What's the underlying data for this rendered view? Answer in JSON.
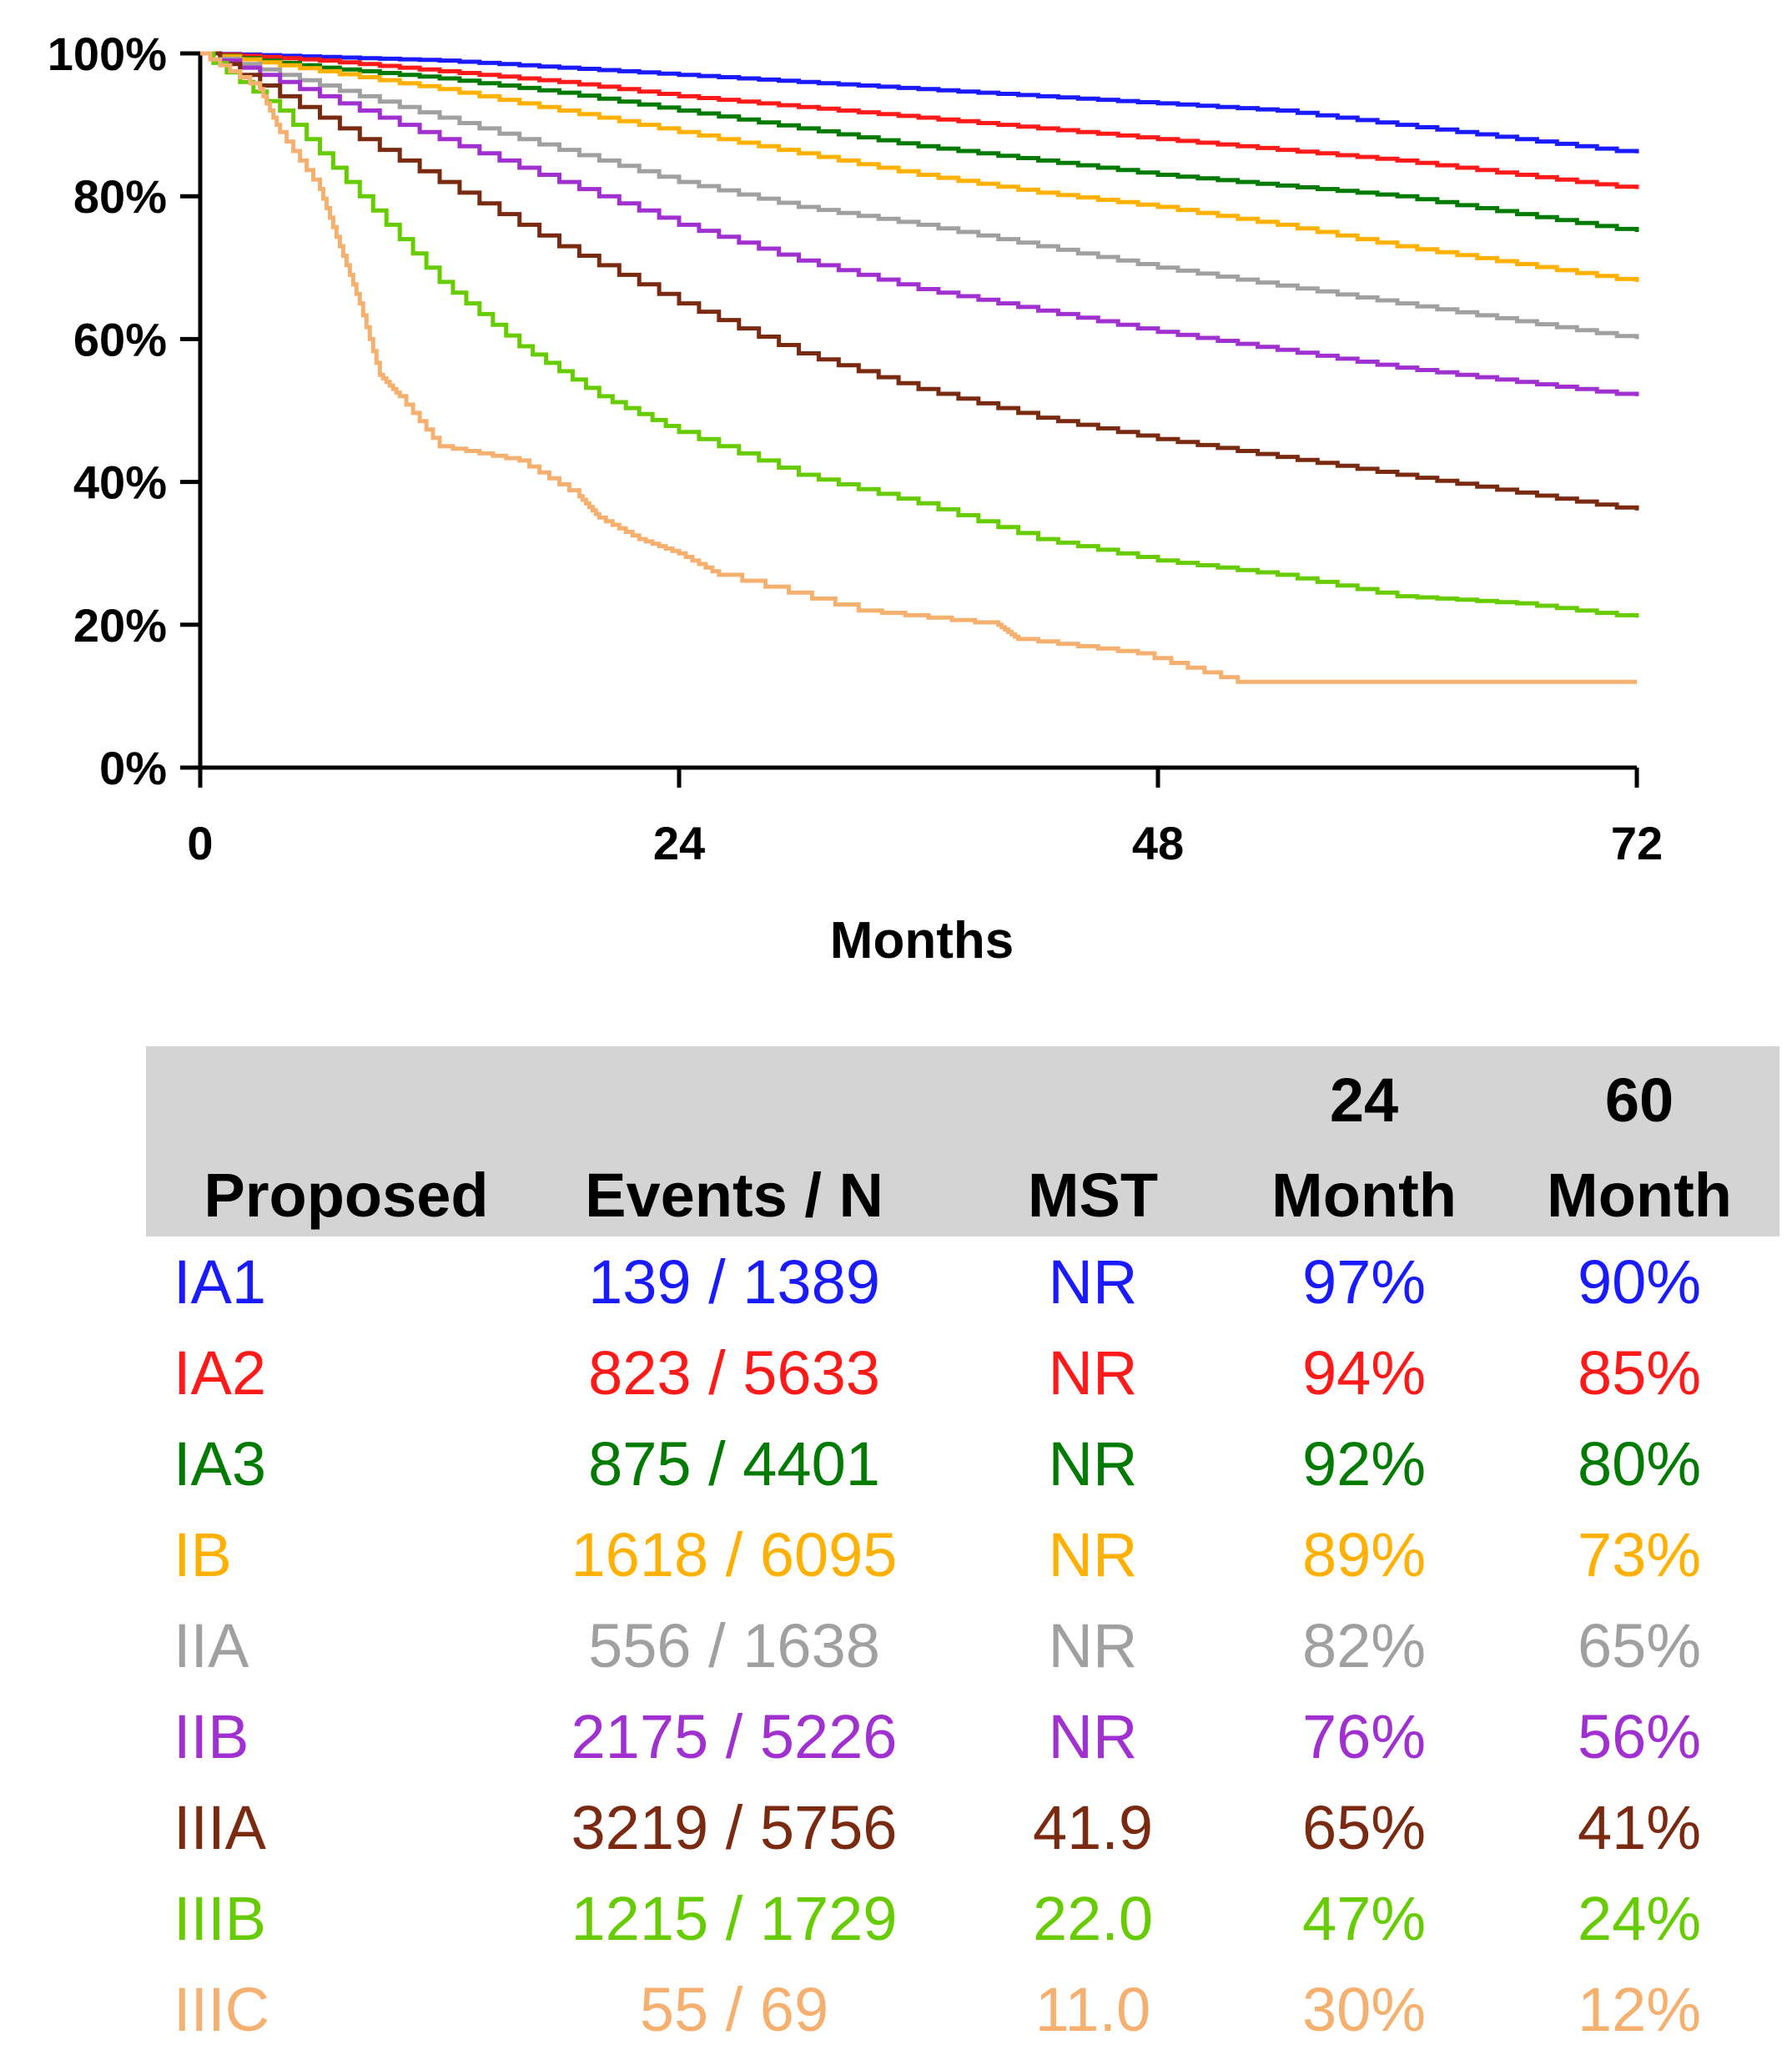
{
  "chart_data": {
    "type": "line",
    "title": "",
    "xlabel": "Months",
    "ylabel": "",
    "xlim": [
      0,
      72
    ],
    "ylim": [
      0,
      100
    ],
    "x_ticks": [
      "0",
      "24",
      "48",
      "72"
    ],
    "y_ticks": [
      "0%",
      "20%",
      "40%",
      "60%",
      "80%",
      "100%"
    ],
    "series": [
      {
        "name": "IA1",
        "color": "#1a1aff",
        "x": [
          0,
          6,
          12,
          18,
          24,
          30,
          36,
          42,
          48,
          54,
          60,
          66,
          72
        ],
        "y": [
          100,
          99.5,
          99,
          98,
          97,
          96,
          95,
          94,
          93,
          92,
          90,
          88,
          86
        ]
      },
      {
        "name": "IA2",
        "color": "#ff1a1a",
        "x": [
          0,
          6,
          12,
          18,
          24,
          30,
          36,
          42,
          48,
          54,
          60,
          66,
          72
        ],
        "y": [
          100,
          99,
          97.5,
          96,
          94,
          92.5,
          91,
          89.5,
          88,
          86.5,
          85,
          83,
          81
        ]
      },
      {
        "name": "IA3",
        "color": "#007a00",
        "x": [
          0,
          6,
          12,
          18,
          24,
          30,
          36,
          42,
          48,
          54,
          60,
          66,
          72
        ],
        "y": [
          100,
          98,
          96.5,
          94.5,
          92,
          89.5,
          87,
          85,
          83,
          81.5,
          80,
          77.5,
          75
        ]
      },
      {
        "name": "IB",
        "color": "#ffb000",
        "x": [
          0,
          6,
          12,
          18,
          24,
          30,
          36,
          42,
          48,
          54,
          60,
          66,
          72
        ],
        "y": [
          100,
          97.5,
          95,
          92,
          89,
          86,
          83,
          80.5,
          78.5,
          76,
          73,
          70.5,
          68
        ]
      },
      {
        "name": "IIA",
        "color": "#a0a0a0",
        "x": [
          0,
          6,
          12,
          18,
          24,
          30,
          36,
          42,
          48,
          54,
          60,
          66,
          72
        ],
        "y": [
          100,
          95.5,
          91,
          86.5,
          82,
          78.5,
          76,
          73,
          70,
          67.5,
          65,
          62.5,
          60
        ]
      },
      {
        "name": "IIB",
        "color": "#a030d0",
        "x": [
          0,
          6,
          12,
          18,
          24,
          30,
          36,
          42,
          48,
          54,
          60,
          66,
          72
        ],
        "y": [
          100,
          94,
          88,
          82,
          76,
          71,
          67,
          64,
          61,
          58.5,
          56,
          54,
          52
        ]
      },
      {
        "name": "IIIA",
        "color": "#7a2a10",
        "x": [
          0,
          6,
          12,
          18,
          24,
          30,
          36,
          42,
          48,
          54,
          60,
          66,
          72
        ],
        "y": [
          100,
          91,
          82,
          73,
          65,
          58,
          53,
          49,
          46,
          43.5,
          41,
          38.5,
          36
        ]
      },
      {
        "name": "IIIB",
        "color": "#66cc00",
        "x": [
          0,
          4,
          8,
          12,
          16,
          20,
          24,
          30,
          36,
          42,
          48,
          54,
          60,
          66,
          72
        ],
        "y": [
          100,
          92,
          80,
          68,
          59,
          52,
          47,
          41,
          37,
          32,
          29,
          27,
          24,
          23,
          21
        ]
      },
      {
        "name": "IIIC",
        "color": "#f5b070",
        "x": [
          0,
          3,
          4,
          6,
          7,
          8,
          9,
          10,
          12,
          16,
          19,
          20,
          22,
          24,
          26,
          33,
          40,
          41,
          47,
          52,
          60,
          72
        ],
        "y": [
          100,
          95,
          89,
          81,
          73,
          65,
          55,
          52,
          45,
          43,
          38,
          35,
          32,
          30,
          27,
          22,
          20,
          18,
          16,
          12,
          12,
          12
        ]
      }
    ]
  },
  "table": {
    "headers": {
      "stage": "Proposed",
      "events": "Events / N",
      "mst": "MST",
      "m24_top": "24",
      "m24_bottom": "Month",
      "m60_top": "60",
      "m60_bottom": "Month"
    },
    "rows": [
      {
        "stage": "IA1",
        "events": "139 / 1389",
        "mst": "NR",
        "m24": "97%",
        "m60": "90%",
        "color": "#1a1aff"
      },
      {
        "stage": "IA2",
        "events": "823 / 5633",
        "mst": "NR",
        "m24": "94%",
        "m60": "85%",
        "color": "#ff1a1a"
      },
      {
        "stage": "IA3",
        "events": "875 / 4401",
        "mst": "NR",
        "m24": "92%",
        "m60": "80%",
        "color": "#007a00"
      },
      {
        "stage": "IB",
        "events": "1618 / 6095",
        "mst": "NR",
        "m24": "89%",
        "m60": "73%",
        "color": "#ffb000"
      },
      {
        "stage": "IIA",
        "events": "556 / 1638",
        "mst": "NR",
        "m24": "82%",
        "m60": "65%",
        "color": "#a0a0a0"
      },
      {
        "stage": "IIB",
        "events": "2175 / 5226",
        "mst": "NR",
        "m24": "76%",
        "m60": "56%",
        "color": "#a030d0"
      },
      {
        "stage": "IIIA",
        "events": "3219 / 5756",
        "mst": "41.9",
        "m24": "65%",
        "m60": "41%",
        "color": "#7a2a10"
      },
      {
        "stage": "IIIB",
        "events": "1215 / 1729",
        "mst": "22.0",
        "m24": "47%",
        "m60": "24%",
        "color": "#66cc00"
      },
      {
        "stage": "IIIC",
        "events": "55 / 69",
        "mst": "11.0",
        "m24": "30%",
        "m60": "12%",
        "color": "#f5b070"
      }
    ]
  }
}
